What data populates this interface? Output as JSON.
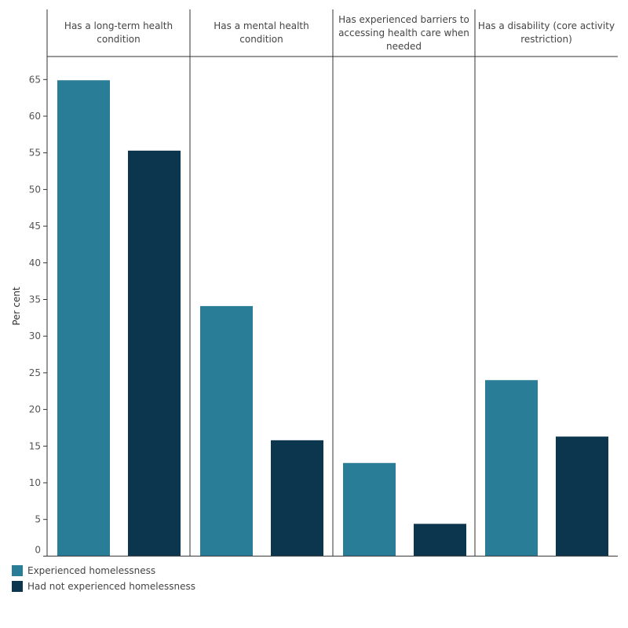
{
  "chart_data": {
    "type": "bar",
    "ylabel": "Per cent",
    "ylim": [
      0,
      68
    ],
    "yticks": [
      0,
      5,
      10,
      15,
      20,
      25,
      30,
      35,
      40,
      45,
      50,
      55,
      60,
      65
    ],
    "grid": false,
    "legend_position": "bottom-left",
    "categories": [
      "Has a long-term health condition",
      "Has a mental health condition",
      "Has experienced barriers to accessing health care when needed",
      "Has a disability (core activity restriction)"
    ],
    "series": [
      {
        "name": "Experienced homelessness",
        "color": "#2a7d97",
        "values": [
          64.9,
          34.1,
          12.7,
          24.0
        ]
      },
      {
        "name": "Had not experienced homelessness",
        "color": "#0b364e",
        "values": [
          55.3,
          15.8,
          4.4,
          16.3
        ]
      }
    ]
  }
}
